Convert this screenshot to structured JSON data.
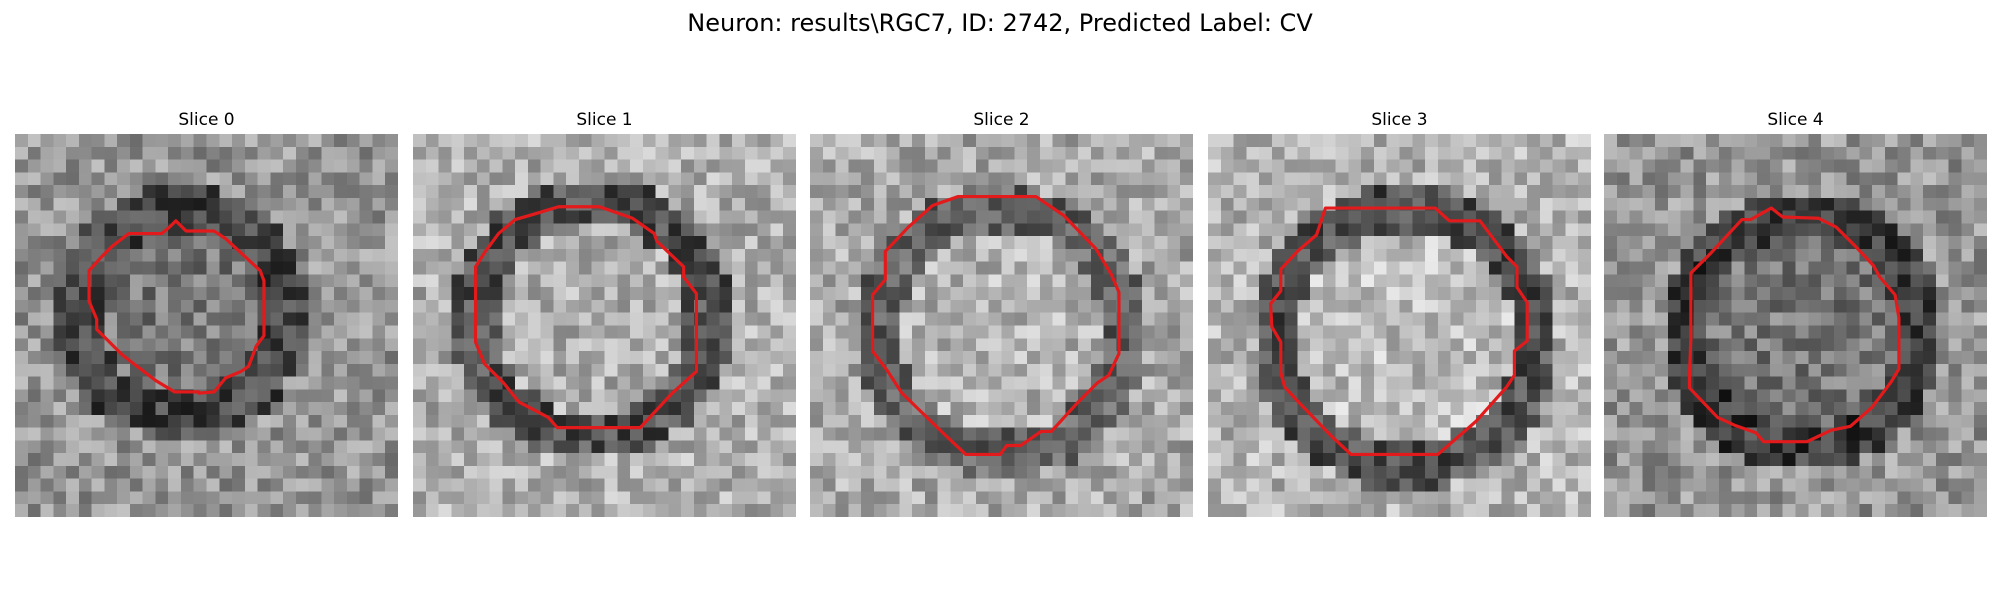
{
  "figure": {
    "title": "Neuron: results\\RGC7, ID: 2742, Predicted Label: CV"
  },
  "panels": [
    {
      "title": "Slice 0"
    },
    {
      "title": "Slice 1"
    },
    {
      "title": "Slice 2"
    },
    {
      "title": "Slice 3"
    },
    {
      "title": "Slice 4"
    }
  ],
  "colors": {
    "contour": "#e31a1c",
    "background": "#ffffff"
  }
}
